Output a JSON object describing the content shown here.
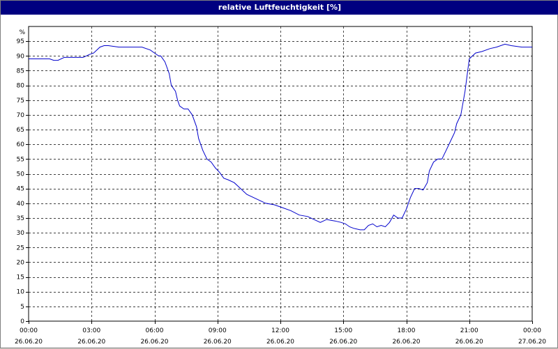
{
  "window": {
    "title": "relative Luftfeuchtigkeit [%]"
  },
  "colors": {
    "titlebar": "#000080",
    "line": "#0000cc",
    "grid": "#000000",
    "background": "#ffffff"
  },
  "chart_data": {
    "type": "line",
    "title": "relative Luftfeuchtigkeit [%]",
    "ylabel": "%",
    "xlabel": "",
    "ylim": [
      0,
      100
    ],
    "yticks": [
      0,
      5,
      10,
      15,
      20,
      25,
      30,
      35,
      40,
      45,
      50,
      55,
      60,
      65,
      70,
      75,
      80,
      85,
      90,
      95
    ],
    "xlim_hours": [
      0,
      24
    ],
    "xticks": [
      {
        "time": "00:00",
        "date": "26.06.20"
      },
      {
        "time": "03:00",
        "date": "26.06.20"
      },
      {
        "time": "06:00",
        "date": "26.06.20"
      },
      {
        "time": "09:00",
        "date": "26.06.20"
      },
      {
        "time": "12:00",
        "date": "26.06.20"
      },
      {
        "time": "15:00",
        "date": "26.06.20"
      },
      {
        "time": "18:00",
        "date": "26.06.20"
      },
      {
        "time": "21:00",
        "date": "26.06.20"
      },
      {
        "time": "00:00",
        "date": "27.06.20"
      }
    ],
    "grid": true,
    "series": [
      {
        "x": [
          0,
          1.0,
          1.2,
          1.4,
          1.7,
          2.0,
          2.6,
          2.9,
          3.1,
          3.4,
          3.6,
          3.8,
          4.3,
          4.6,
          5.0,
          5.4,
          5.8,
          6.0,
          6.2,
          6.3,
          6.5,
          6.7,
          6.8,
          7.0,
          7.1,
          7.2,
          7.4,
          7.6,
          7.7,
          7.8,
          8.0,
          8.1,
          8.3,
          8.5,
          8.7,
          8.9,
          9.1,
          9.3,
          9.5,
          9.8,
          10.1,
          10.4,
          10.7,
          11.0,
          11.3,
          11.7,
          12.1,
          12.5,
          12.9,
          13.3,
          13.6,
          13.9,
          14.2,
          14.6,
          14.9,
          15.1,
          15.3,
          15.5,
          15.8,
          16.0,
          16.2,
          16.4,
          16.6,
          16.8,
          17.0,
          17.2,
          17.4,
          17.6,
          17.8,
          18.0,
          18.2,
          18.4,
          18.6,
          18.8,
          19.0,
          19.1,
          19.3,
          19.5,
          19.7,
          19.9,
          20.1,
          20.3,
          20.4,
          20.6,
          20.8,
          21.0,
          21.3,
          21.6,
          22.0,
          22.3,
          22.7,
          23.0,
          23.5,
          24.0
        ],
        "y": [
          89,
          89,
          88.5,
          88.5,
          89.5,
          89.5,
          89.5,
          90.5,
          91,
          93,
          93.5,
          93.5,
          93,
          93,
          93,
          93,
          92,
          91,
          90,
          90,
          88,
          84,
          80,
          78,
          75,
          73,
          72,
          72,
          71,
          70,
          66,
          62,
          58,
          55,
          54,
          52,
          50.5,
          48.5,
          48,
          47,
          45,
          43,
          42,
          41,
          40,
          39.5,
          38.5,
          37.5,
          36,
          35.5,
          34.5,
          33.5,
          34.5,
          34,
          33.5,
          33,
          32,
          31.5,
          31,
          31,
          32.5,
          33,
          32,
          32.5,
          32,
          33.5,
          36,
          35,
          35,
          38,
          42,
          45,
          45,
          44.5,
          47,
          51,
          54,
          55,
          55,
          58,
          61,
          64,
          67,
          70,
          78,
          89,
          91,
          91.5,
          92.5,
          93,
          94,
          93.5,
          93,
          93
        ]
      }
    ]
  }
}
